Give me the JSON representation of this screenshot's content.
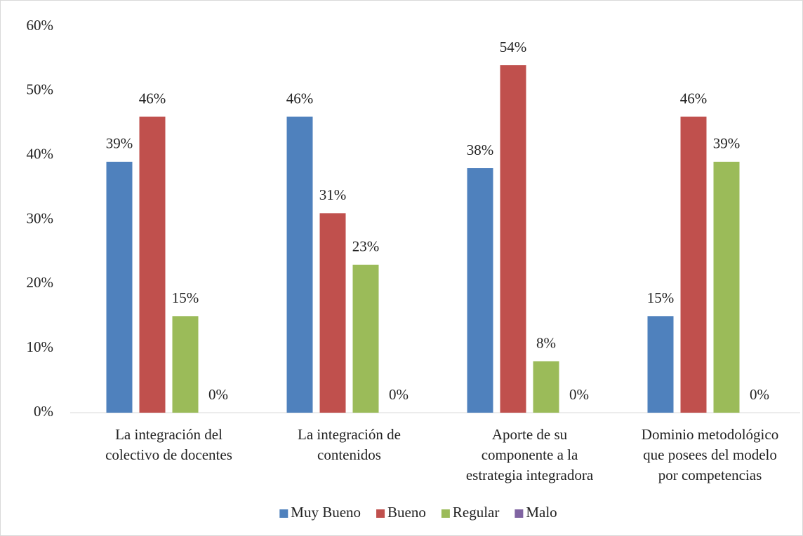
{
  "chart_data": {
    "type": "bar",
    "categories": [
      "La integración del colectivo de docentes",
      "La integración de contenidos",
      "Aporte de su componente a la estrategia integradora",
      "Dominio metodológico que posees del modelo por competencias"
    ],
    "series": [
      {
        "name": "Muy Bueno",
        "color": "#4f81bd",
        "values": [
          39,
          46,
          38,
          15
        ],
        "value_labels": [
          "39%",
          "46%",
          "38%",
          "15%"
        ]
      },
      {
        "name": "Bueno",
        "color": "#c0504d",
        "values": [
          46,
          31,
          54,
          46
        ],
        "value_labels": [
          "46%",
          "31%",
          "54%",
          "46%"
        ]
      },
      {
        "name": "Regular",
        "color": "#9bbb59",
        "values": [
          15,
          23,
          8,
          39
        ],
        "value_labels": [
          "15%",
          "23%",
          "8%",
          "39%"
        ]
      },
      {
        "name": "Malo",
        "color": "#8064a2",
        "values": [
          0,
          0,
          0,
          0
        ],
        "value_labels": [
          "0%",
          "0%",
          "0%",
          "0%"
        ]
      }
    ],
    "ylim": [
      0,
      60
    ],
    "yticks": [
      {
        "value": 0,
        "label": "0%"
      },
      {
        "value": 10,
        "label": "10%"
      },
      {
        "value": 20,
        "label": "20%"
      },
      {
        "value": 30,
        "label": "30%"
      },
      {
        "value": 40,
        "label": "40%"
      },
      {
        "value": 50,
        "label": "50%"
      },
      {
        "value": 60,
        "label": "60%"
      }
    ],
    "grid": false,
    "legend": "bottom"
  }
}
